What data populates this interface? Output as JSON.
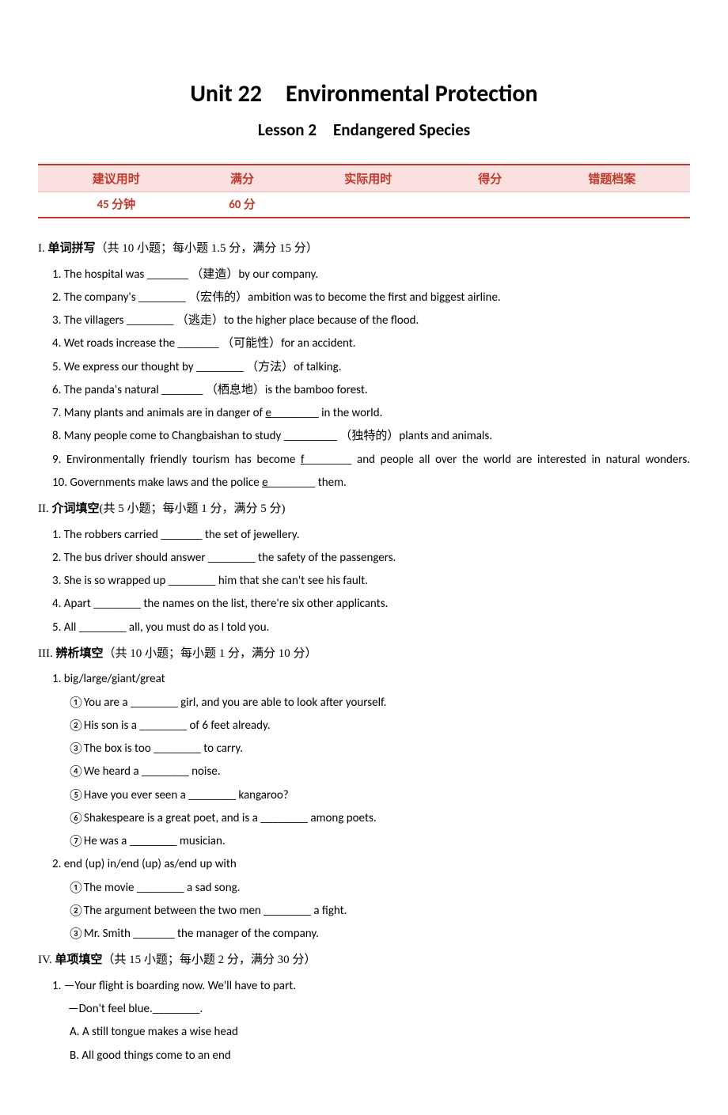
{
  "title": "Unit 22 Environmental Protection",
  "subtitle": "Lesson 2 Endangered Species",
  "header_table": {
    "columns": [
      "建议用时",
      "满分",
      "实际用时",
      "得分",
      "错题档案"
    ],
    "values": [
      "45 分钟",
      "60 分",
      "",
      "",
      ""
    ],
    "header_bg": "#fbe0e0",
    "text_color": "#c0392b",
    "border_color": "#c0392b"
  },
  "section1": {
    "heading_num": "I. ",
    "heading_bold": "单词拼写",
    "heading_rest": "（共 10 小题；每小题 1.5 分，满分 15 分）",
    "q1a": "1. The hospital was _______ ",
    "q1b": "（建造）",
    "q1c": "by our company.",
    "q2a": "2. The company's ________ ",
    "q2b": "（宏伟的）",
    "q2c": "ambition was to become the first and biggest airline.",
    "q3a": "3. The villagers ________ ",
    "q3b": "（逃走）",
    "q3c": "to the higher place because of the flood.",
    "q4a": "4. Wet roads increase the _______ ",
    "q4b": "（可能性）",
    "q4c": "for an accident.",
    "q5a": "5. We express our thought by ________ ",
    "q5b": "（方法）",
    "q5c": "of talking.",
    "q6a": "6. The panda's natural _______ ",
    "q6b": "（栖息地）",
    "q6c": "is the bamboo forest.",
    "q7": "7. Many plants and animals are in danger of ",
    "q7u": "e",
    "q7b": "________ in the world.",
    "q8a": "8. Many people come to Changbaishan to study _________ ",
    "q8b": "（独特的）",
    "q8c": "plants and animals.",
    "q9": "9. Environmentally friendly tourism has become ",
    "q9u": "f",
    "q9b": "________ and people all over the world are interested in natural wonders.",
    "q10": "10. Governments make laws and the police ",
    "q10u": "e",
    "q10b": "________ them."
  },
  "section2": {
    "heading_num": "II. ",
    "heading_bold": "介词填空",
    "heading_rest": "(共 5 小题；每小题 1 分，满分 5 分)",
    "q1": "1. The robbers carried _______ the set of jewellery.",
    "q2": "2. The bus driver should answer ________ the safety of the passengers.",
    "q3": "3. She is so wrapped up ________ him that she can't see his fault.",
    "q4": "4. Apart ________ the names on the list, there're six other applicants.",
    "q5": "5. All ________ all, you must do as I told you."
  },
  "section3": {
    "heading_num": "III. ",
    "heading_bold": "辨析填空",
    "heading_rest": "（共 10 小题；每小题 1 分，满分 10 分）",
    "g1": "1. big/large/giant/great",
    "g1_1": "①You are a ________ girl, and you are able to look after yourself.",
    "g1_2": "②His son is a ________ of 6 feet already.",
    "g1_3": "③The box is too ________ to carry.",
    "g1_4": "④We heard a ________ noise.",
    "g1_5": "⑤Have you ever seen a ________ kangaroo?",
    "g1_6": "⑥Shakespeare is a great poet, and is a ________ among poets.",
    "g1_7": "⑦He was a ________ musician.",
    "g2": "2. end (up) in/end (up) as/end up with",
    "g2_1": "①The movie ________ a sad song.",
    "g2_2": "②The argument between the two men ________ a fight.",
    "g2_3": "③Mr. Smith _______ the manager of the company."
  },
  "section4": {
    "heading_num": "IV. ",
    "heading_bold": "单项填空",
    "heading_rest": "（共 15 小题；每小题 2 分，满分 30 分）",
    "q1l1": "1. —Your flight is boarding now. We'll have to part.",
    "q1l2": "—Don't feel blue.________.",
    "q1a": "A. A still tongue makes a wise head",
    "q1b": "B. All good things come to an end"
  }
}
